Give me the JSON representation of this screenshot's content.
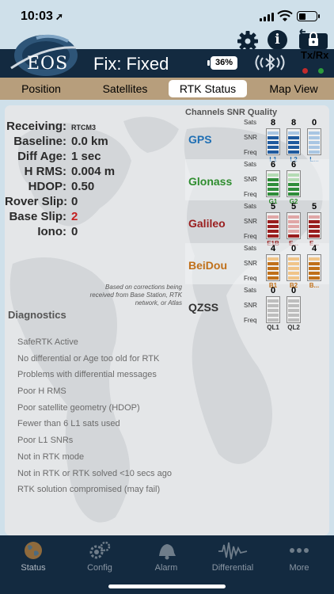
{
  "status_bar": {
    "time": "10:03"
  },
  "header": {
    "app_logo": "EOS",
    "fix_status": "Fix: Fixed",
    "battery_percent": "36%",
    "txrx_label": "Tx/Rx"
  },
  "tabs": [
    {
      "label": "Position",
      "active": false
    },
    {
      "label": "Satellites",
      "active": false
    },
    {
      "label": "RTK Status",
      "active": true
    },
    {
      "label": "Map View",
      "active": false
    }
  ],
  "rtk": {
    "rows": [
      {
        "label": "Receiving:",
        "value": "RTCM3",
        "small": true
      },
      {
        "label": "Baseline:",
        "value": "0.0 km"
      },
      {
        "label": "Diff Age:",
        "value": "1 sec"
      },
      {
        "label": "H RMS:",
        "value": "0.004 m"
      },
      {
        "label": "HDOP:",
        "value": "0.50"
      },
      {
        "label": "Rover Slip:",
        "value": "0"
      },
      {
        "label": "Base Slip:",
        "value": "2",
        "alert": true
      },
      {
        "label": "Iono:",
        "value": "0"
      }
    ],
    "note": "Based on corrections being received from Base Station, RTK network, or Atlas",
    "diagnostics_title": "Diagnostics",
    "diagnostics": [
      "SafeRTK Active",
      "No differential or Age too old for RTK",
      "Problems with differential messages",
      "Poor H RMS",
      "Poor satellite geometry (HDOP)",
      "Fewer than 6 L1 sats used",
      "Poor L1 SNRs",
      "Not in RTK mode",
      "Not in RTK or RTK solved <10 secs ago",
      "RTK solution compromised (may fail)"
    ]
  },
  "channels": {
    "title": "Channels SNR Quality",
    "row_labels": {
      "sats": "Sats",
      "snr": "SNR",
      "freq": "Freq"
    },
    "groups": [
      {
        "name": "GPS",
        "color": "#1f6fb4",
        "bar_dark": "#1f5a9e",
        "bar_light": "#a9c6e3",
        "channels": [
          {
            "sats": "8",
            "freq": "L1",
            "level": 4
          },
          {
            "sats": "8",
            "freq": "L2",
            "level": 4
          },
          {
            "sats": "0",
            "freq": "L...",
            "level": 0
          }
        ]
      },
      {
        "name": "Glonass",
        "color": "#2f8d2f",
        "bar_dark": "#2f8d3a",
        "bar_light": "#b4dbb4",
        "channels": [
          {
            "sats": "6",
            "freq": "G1",
            "level": 4
          },
          {
            "sats": "6",
            "freq": "G2",
            "level": 3
          }
        ]
      },
      {
        "name": "Galileo",
        "color": "#9a1e1e",
        "bar_dark": "#9a1e1e",
        "bar_light": "#e0a6a6",
        "channels": [
          {
            "sats": "5",
            "freq": "E1B",
            "level": 4
          },
          {
            "sats": "5",
            "freq": "E...",
            "level": 1
          },
          {
            "sats": "5",
            "freq": "E...",
            "level": 4
          }
        ]
      },
      {
        "name": "BeiDou",
        "color": "#c0701a",
        "bar_dark": "#c0701a",
        "bar_light": "#f0c488",
        "channels": [
          {
            "sats": "4",
            "freq": "B1",
            "level": 4
          },
          {
            "sats": "0",
            "freq": "B2",
            "level": 0
          },
          {
            "sats": "4",
            "freq": "B...",
            "level": 4
          }
        ]
      },
      {
        "name": "QZSS",
        "color": "#333333",
        "bar_dark": "#777777",
        "bar_light": "#bdbdbd",
        "channels": [
          {
            "sats": "0",
            "freq": "QL1",
            "level": 0
          },
          {
            "sats": "0",
            "freq": "QL2",
            "level": 0
          }
        ]
      }
    ]
  },
  "bottom_nav": [
    {
      "label": "Status",
      "icon": "globe-icon",
      "active": true
    },
    {
      "label": "Config",
      "icon": "gears-icon",
      "active": false
    },
    {
      "label": "Alarm",
      "icon": "alarm-bell-icon",
      "active": false
    },
    {
      "label": "Differential",
      "icon": "waveform-icon",
      "active": false
    },
    {
      "label": "More",
      "icon": "more-dots-icon",
      "active": false
    }
  ]
}
